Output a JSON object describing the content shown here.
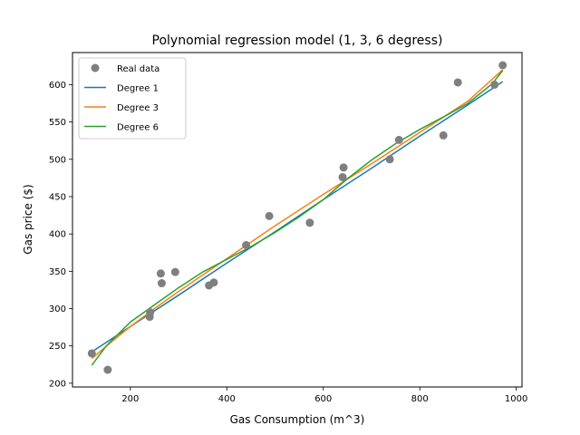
{
  "chart_data": {
    "type": "scatter",
    "title": "Polynomial regression model (1, 3, 6 degress)",
    "xlabel": "Gas Consumption (m^3)",
    "ylabel": "Gas price ($)",
    "xlim": [
      80,
      1012
    ],
    "ylim": [
      195,
      643
    ],
    "xticks": [
      200,
      400,
      600,
      800,
      1000
    ],
    "yticks": [
      200,
      250,
      300,
      350,
      400,
      450,
      500,
      550,
      600
    ],
    "grid": false,
    "legend_position": "top-left",
    "scatter": {
      "name": "Real data",
      "color": "#7f7f7f",
      "points": [
        [
          120,
          240
        ],
        [
          153,
          218
        ],
        [
          240,
          289
        ],
        [
          241,
          295
        ],
        [
          263,
          347
        ],
        [
          265,
          334
        ],
        [
          293,
          349
        ],
        [
          363,
          331
        ],
        [
          373,
          335
        ],
        [
          440,
          385
        ],
        [
          488,
          424
        ],
        [
          572,
          415
        ],
        [
          640,
          476
        ],
        [
          642,
          489
        ],
        [
          738,
          500
        ],
        [
          757,
          526
        ],
        [
          849,
          532
        ],
        [
          879,
          603
        ],
        [
          955,
          600
        ],
        [
          972,
          626
        ]
      ]
    },
    "series": [
      {
        "name": "Degree 1",
        "color": "#1f77b4",
        "x": [
          120,
          200,
          300,
          400,
          500,
          600,
          700,
          800,
          900,
          972
        ],
        "values": [
          242,
          276,
          318,
          361,
          403,
          446,
          488,
          531,
          573,
          604
        ]
      },
      {
        "name": "Degree 3",
        "color": "#ff7f0e",
        "x": [
          120,
          160,
          200,
          250,
          300,
          350,
          400,
          500,
          600,
          700,
          800,
          900,
          972
        ],
        "values": [
          233,
          255,
          276,
          300,
          323,
          345,
          367,
          411,
          453,
          494,
          536,
          578,
          620
        ]
      },
      {
        "name": "Degree 6",
        "color": "#2ca02c",
        "x": [
          120,
          150,
          200,
          250,
          300,
          350,
          400,
          450,
          500,
          550,
          600,
          650,
          700,
          750,
          800,
          850,
          900,
          950,
          972
        ],
        "values": [
          224,
          250,
          282,
          305,
          328,
          349,
          366,
          383,
          402,
          423,
          446,
          474,
          499,
          521,
          540,
          557,
          575,
          601,
          619
        ]
      }
    ]
  }
}
